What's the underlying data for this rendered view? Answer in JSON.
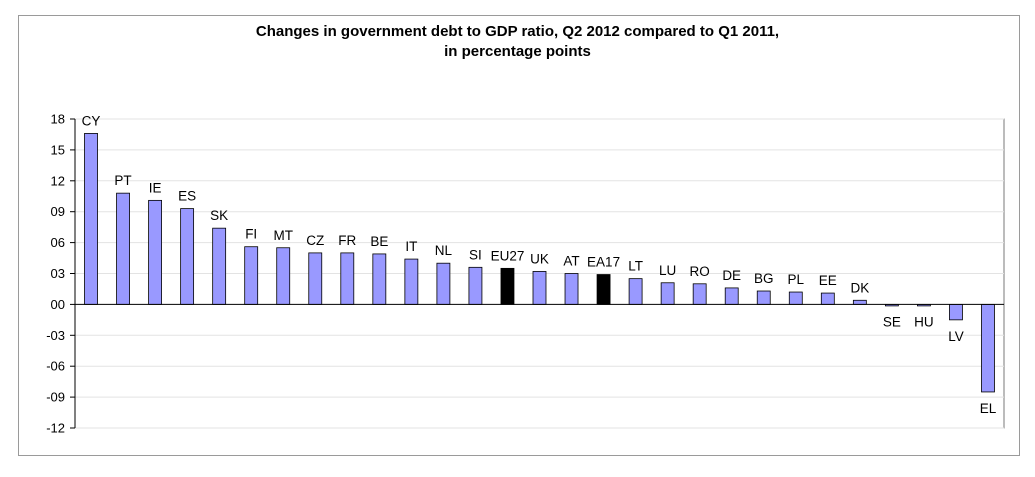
{
  "chart_data": {
    "type": "bar",
    "title": "Changes in government debt to GDP ratio, Q2 2012 compared to Q1 2011,",
    "subtitle": "in percentage points",
    "xlabel": "",
    "ylabel": "",
    "ylim": [
      -12,
      18
    ],
    "y_ticks": [
      18,
      15,
      12,
      9,
      6,
      3,
      0,
      -3,
      -6,
      -9,
      -12
    ],
    "y_tick_labels": [
      "18",
      "15",
      "12",
      "09",
      "06",
      "03",
      "00",
      "-03",
      "-06",
      "-09",
      "-12"
    ],
    "grid": true,
    "legend": "none",
    "categories": [
      "CY",
      "PT",
      "IE",
      "ES",
      "SK",
      "FI",
      "MT",
      "CZ",
      "FR",
      "BE",
      "IT",
      "NL",
      "SI",
      "EU27",
      "UK",
      "AT",
      "EA17",
      "LT",
      "LU",
      "RO",
      "DE",
      "BG",
      "PL",
      "EE",
      "DK",
      "SE",
      "HU",
      "LV",
      "EL"
    ],
    "values": [
      16.6,
      10.8,
      10.1,
      9.3,
      7.4,
      5.6,
      5.5,
      5.0,
      5.0,
      4.9,
      4.4,
      4.0,
      3.6,
      3.5,
      3.2,
      3.0,
      2.9,
      2.5,
      2.1,
      2.0,
      1.6,
      1.3,
      1.2,
      1.1,
      0.4,
      -0.1,
      -0.1,
      -1.5,
      -8.5
    ],
    "highlight": [
      "EU27",
      "EA17"
    ],
    "colors": {
      "bar": "#9999ff",
      "highlight": "#000000",
      "grid": "#e3e3e3",
      "axis": "#000000"
    }
  }
}
